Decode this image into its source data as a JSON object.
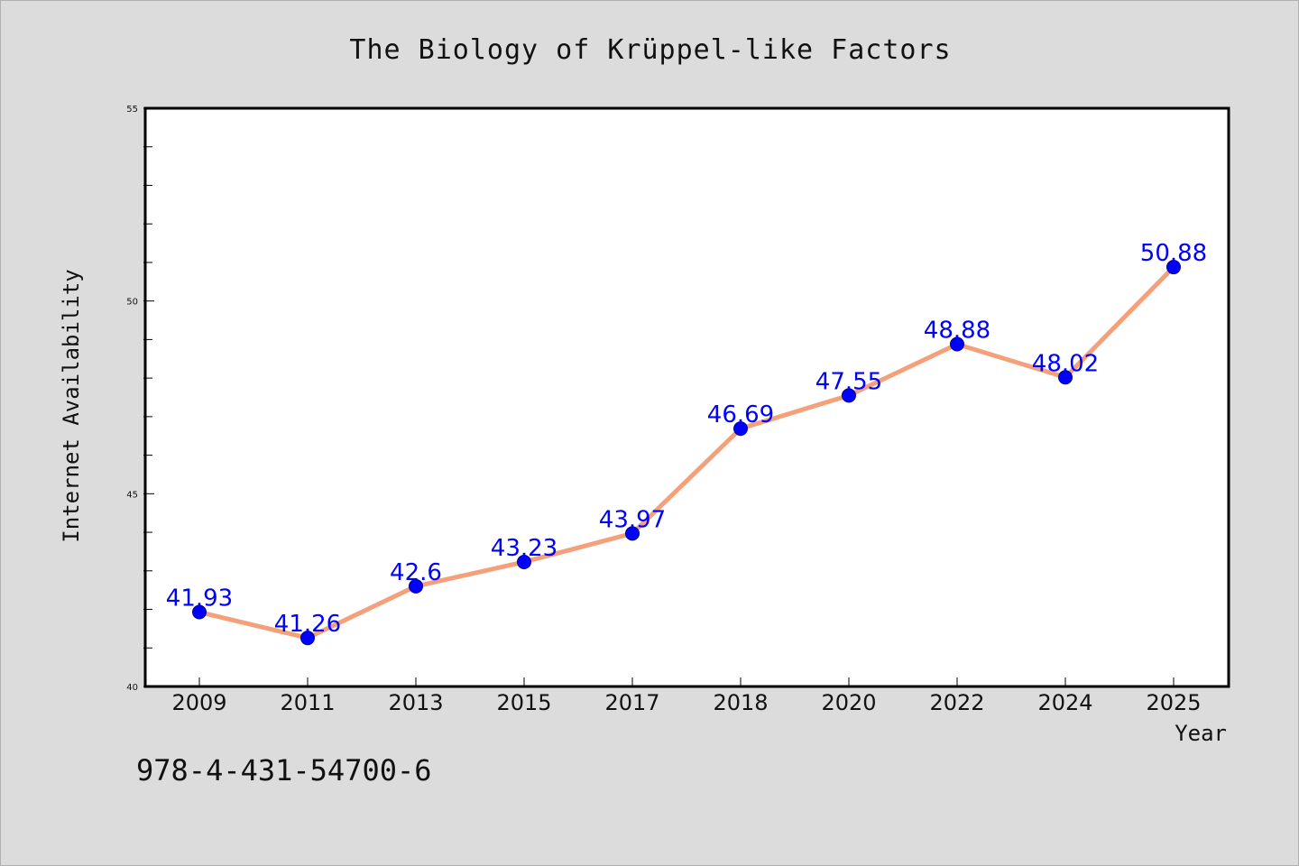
{
  "chart_data": {
    "type": "line",
    "title": "The Biology of Krüppel-like Factors",
    "xlabel": "Year",
    "ylabel": "Internet Availability",
    "categories": [
      "2009",
      "2011",
      "2013",
      "2015",
      "2017",
      "2018",
      "2020",
      "2022",
      "2024",
      "2025"
    ],
    "series": [
      {
        "values": [
          41.93,
          41.26,
          42.6,
          43.23,
          43.97,
          46.69,
          47.55,
          48.88,
          48.02,
          50.88
        ],
        "labels": [
          "41.93",
          "41.26",
          "42.6",
          "43.23",
          "43.97",
          "46.69",
          "47.55",
          "48.88",
          "48.02",
          "50.88"
        ]
      }
    ],
    "ylim": [
      40,
      55
    ],
    "yticks": [
      "40",
      "45",
      "50",
      "55"
    ],
    "y_minor_step": 1,
    "grid": false,
    "colors": {
      "line": "#f4a07a",
      "marker": "#0000ff",
      "data_label": "#0000ff",
      "plot_bg": "#ffffff",
      "page_bg": "#dcdcdc"
    }
  },
  "footer_text": "978-4-431-54700-6"
}
